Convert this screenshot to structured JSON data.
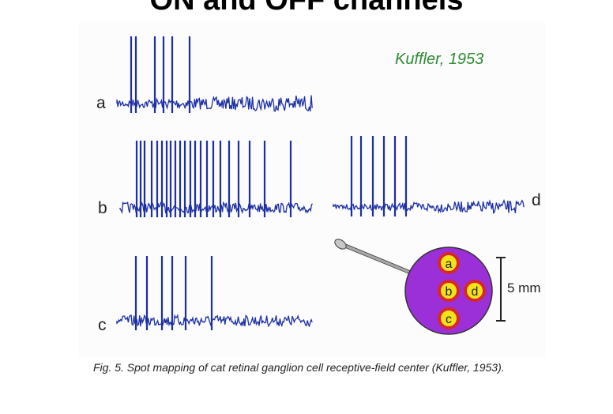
{
  "slide": {
    "title": "ON and OFF channels"
  },
  "figure": {
    "citation": "Kuffler, 1953",
    "traces": [
      {
        "label": "a"
      },
      {
        "label": "b"
      },
      {
        "label": "c"
      },
      {
        "label": "d"
      }
    ],
    "receptive_field": {
      "spots": [
        "a",
        "b",
        "d",
        "c"
      ],
      "scale_label": "5 mm",
      "colors": {
        "field": "#9b30d9",
        "spot_ring": "#d62828",
        "spot_fill": "#f2e21a",
        "electrode": "#a9a9a9"
      }
    },
    "trace_color": "#1c2fa6",
    "caption": "Fig. 5. Spot mapping of cat retinal ganglion cell receptive-field center (Kuffler, 1953)."
  }
}
